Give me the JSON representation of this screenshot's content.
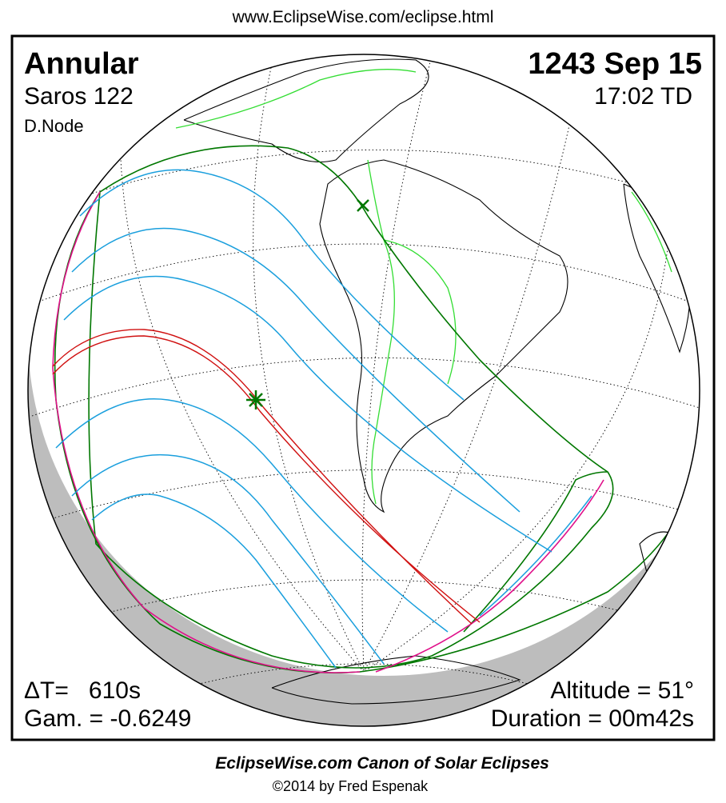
{
  "header": {
    "url": "www.EclipseWise.com/eclipse.html"
  },
  "panel": {
    "eclipse_type": "Annular",
    "date": "1243 Sep 15",
    "saros": "Saros 122",
    "time": "17:02 TD",
    "node": "D.Node",
    "delta_t": "ΔT=   610s",
    "altitude": "Altitude = 51°",
    "gamma": "Gam. = -0.6249",
    "duration": "Duration = 00m42s"
  },
  "footer": {
    "title": "EclipseWise.com Canon of Solar Eclipses",
    "credit": "©2014 by Fred Espenak"
  }
}
